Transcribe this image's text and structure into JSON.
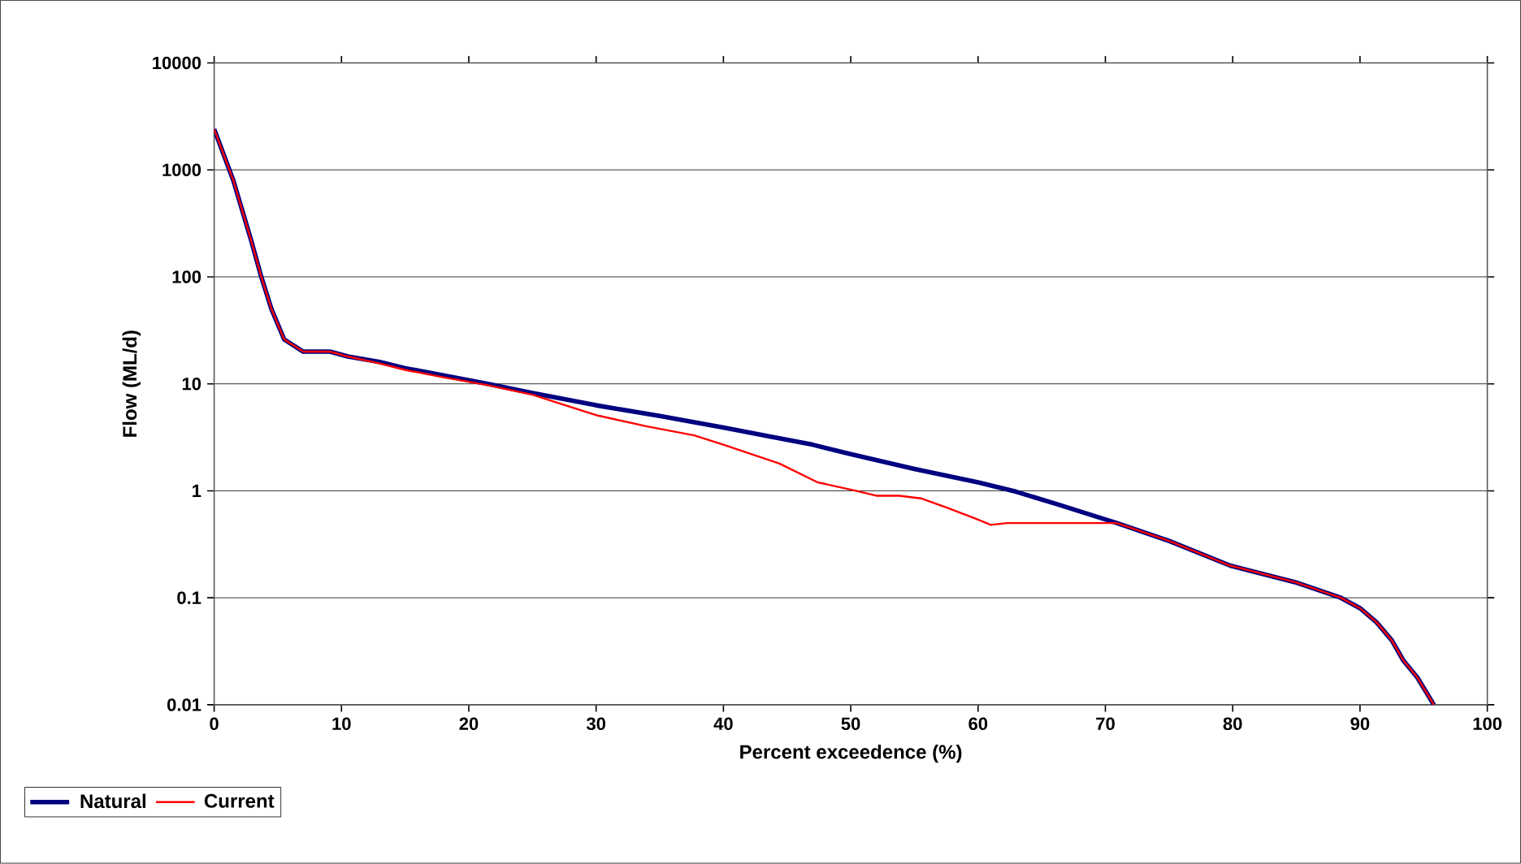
{
  "chart_data": {
    "type": "line",
    "xlabel": "Percent exceedence (%)",
    "ylabel": "Flow (ML/d)",
    "log": "y",
    "xlim": [
      0,
      100
    ],
    "xticks": [
      0,
      10,
      20,
      30,
      40,
      50,
      60,
      70,
      80,
      90,
      100
    ],
    "ylim": [
      0.01,
      10000
    ],
    "yticks": [
      0.01,
      0.1,
      1,
      10,
      100,
      1000,
      10000
    ],
    "grid": "y",
    "legend": "bottom left",
    "marker": "none",
    "line_style": "solid",
    "series": [
      {
        "name": "Natural",
        "color": "#000080",
        "x": [
          0,
          1.5,
          2.9,
          3.7,
          4.5,
          5.5,
          7,
          9.1,
          10.5,
          13,
          15,
          18,
          21.5,
          25,
          30,
          35,
          40,
          43.8,
          47,
          50,
          55,
          60,
          63,
          66.2,
          70.9,
          75,
          79.8,
          84.9,
          88.5,
          90,
          91.3,
          92.5,
          93.4,
          94.5,
          95.8
        ],
        "values": [
          2400,
          800,
          220,
          100,
          50,
          26,
          20,
          20,
          18,
          16,
          14,
          12,
          10,
          8.2,
          6.3,
          5,
          3.9,
          3.2,
          2.7,
          2.2,
          1.6,
          1.2,
          0.98,
          0.75,
          0.5,
          0.34,
          0.2,
          0.14,
          0.1,
          0.08,
          0.059,
          0.04,
          0.026,
          0.018,
          0.01
        ]
      },
      {
        "name": "Current",
        "color": "#ff0000",
        "x": [
          0,
          1.5,
          2.9,
          3.7,
          4.5,
          5.5,
          7,
          9.1,
          10.5,
          13,
          15,
          18,
          21.5,
          25,
          30,
          34,
          37.7,
          40,
          44.4,
          47.4,
          50.4,
          52,
          53.8,
          55.5,
          57.5,
          59.8,
          61,
          62.3,
          66,
          70.9,
          75,
          79.8,
          84.9,
          88.5,
          90,
          91.3,
          92.5,
          93.4,
          94.5,
          95.8
        ],
        "values": [
          2400,
          800,
          220,
          100,
          50,
          26,
          20,
          20,
          18,
          15.5,
          13.5,
          11.5,
          9.7,
          7.9,
          5.1,
          4,
          3.3,
          2.7,
          1.8,
          1.2,
          1,
          0.9,
          0.9,
          0.85,
          0.7,
          0.55,
          0.48,
          0.5,
          0.5,
          0.5,
          0.34,
          0.2,
          0.14,
          0.1,
          0.08,
          0.059,
          0.04,
          0.026,
          0.018,
          0.01
        ]
      }
    ]
  }
}
